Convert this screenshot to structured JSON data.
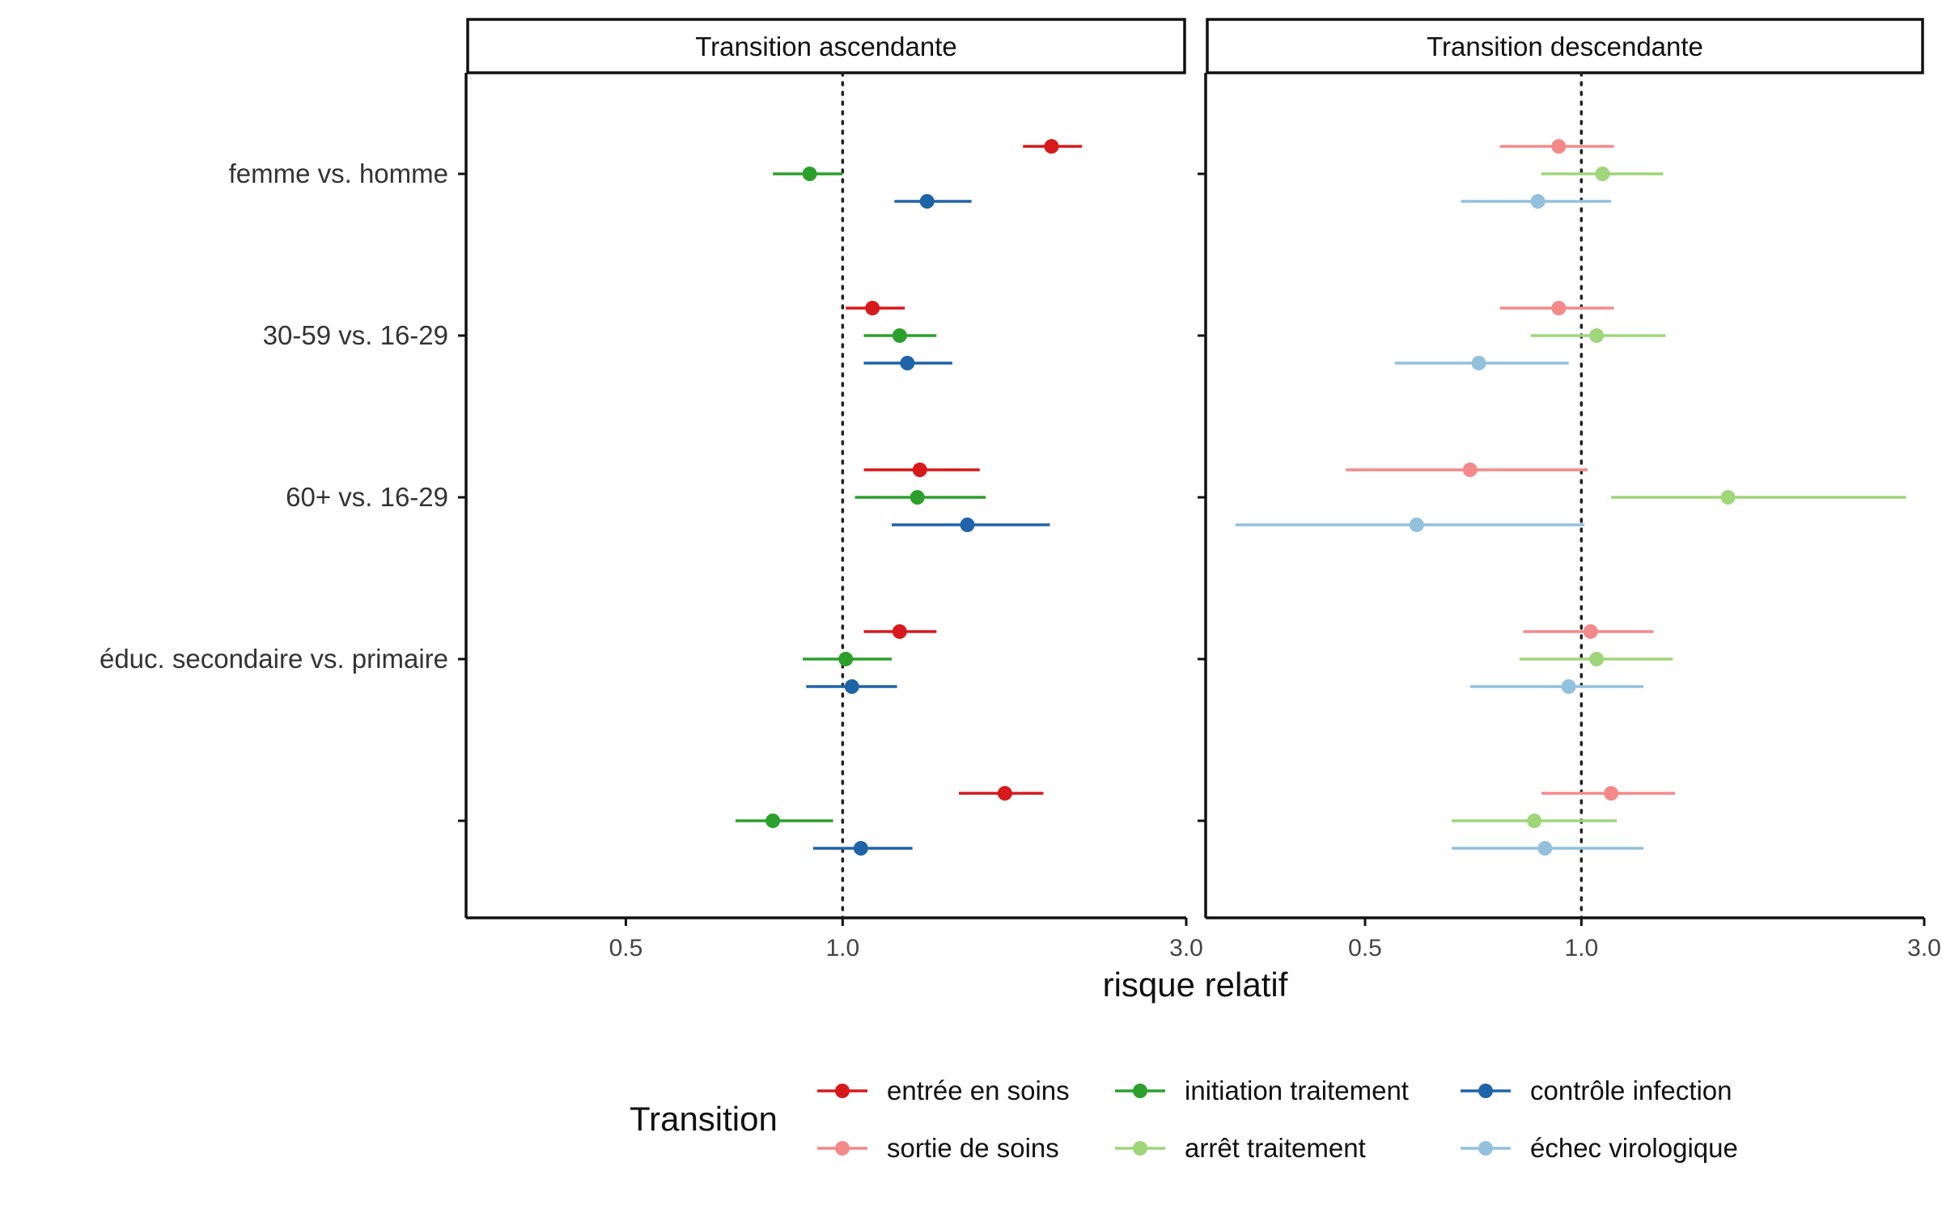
{
  "chart_data": {
    "type": "forest",
    "xlabel": "risque relatif",
    "x_scale": "log",
    "xlim": [
      0.3,
      3.0
    ],
    "x_ticks": [
      0.5,
      1.0,
      3.0
    ],
    "x_tick_labels": [
      "0.5",
      "1.0",
      "3.0"
    ],
    "reference_line": 1.0,
    "grid": false,
    "legend_position": "bottom",
    "legend_title": "Transition",
    "categories": [
      "femme vs. homme",
      "30-59 vs. 16-29",
      "60+ vs. 16-29",
      "éduc. secondaire vs. primaire",
      ""
    ],
    "panels": [
      {
        "title": "Transition ascendante",
        "series": [
          {
            "name": "entrée en soins",
            "color": "#d7191c",
            "est": [
              1.95,
              1.1,
              1.28,
              1.2,
              1.68
            ],
            "lo": [
              1.78,
              1.01,
              1.07,
              1.07,
              1.45
            ],
            "hi": [
              2.15,
              1.22,
              1.55,
              1.35,
              1.9
            ]
          },
          {
            "name": "initiation traitement",
            "color": "#2ca02c",
            "est": [
              0.9,
              1.2,
              1.27,
              1.01,
              0.8
            ],
            "lo": [
              0.8,
              1.07,
              1.04,
              0.88,
              0.71
            ],
            "hi": [
              1.0,
              1.35,
              1.58,
              1.17,
              0.97
            ]
          },
          {
            "name": "contrôle infection",
            "color": "#1f63a8",
            "est": [
              1.31,
              1.23,
              1.49,
              1.03,
              1.06
            ],
            "lo": [
              1.18,
              1.07,
              1.17,
              0.89,
              0.91
            ],
            "hi": [
              1.51,
              1.42,
              1.94,
              1.19,
              1.25
            ]
          }
        ]
      },
      {
        "title": "Transition descendante",
        "series": [
          {
            "name": "sortie de soins",
            "color": "#f4898a",
            "est": [
              0.93,
              0.93,
              0.7,
              1.03,
              1.1
            ],
            "lo": [
              0.77,
              0.77,
              0.47,
              0.83,
              0.88
            ],
            "hi": [
              1.11,
              1.11,
              1.02,
              1.26,
              1.35
            ]
          },
          {
            "name": "arrêt traitement",
            "color": "#9fd67a",
            "est": [
              1.07,
              1.05,
              1.6,
              1.05,
              0.86
            ],
            "lo": [
              0.88,
              0.85,
              1.1,
              0.82,
              0.66
            ],
            "hi": [
              1.3,
              1.31,
              2.83,
              1.34,
              1.12
            ]
          },
          {
            "name": "échec virologique",
            "color": "#92c1dd",
            "est": [
              0.87,
              0.72,
              0.59,
              0.96,
              0.89
            ],
            "lo": [
              0.68,
              0.55,
              0.33,
              0.7,
              0.66
            ],
            "hi": [
              1.1,
              0.96,
              1.01,
              1.22,
              1.22
            ]
          }
        ]
      }
    ],
    "legend": [
      {
        "name": "entrée en soins",
        "color": "#d7191c"
      },
      {
        "name": "initiation traitement",
        "color": "#2ca02c"
      },
      {
        "name": "contrôle infection",
        "color": "#1f63a8"
      },
      {
        "name": "sortie de soins",
        "color": "#f4898a"
      },
      {
        "name": "arrêt traitement",
        "color": "#9fd67a"
      },
      {
        "name": "échec virologique",
        "color": "#92c1dd"
      }
    ]
  }
}
